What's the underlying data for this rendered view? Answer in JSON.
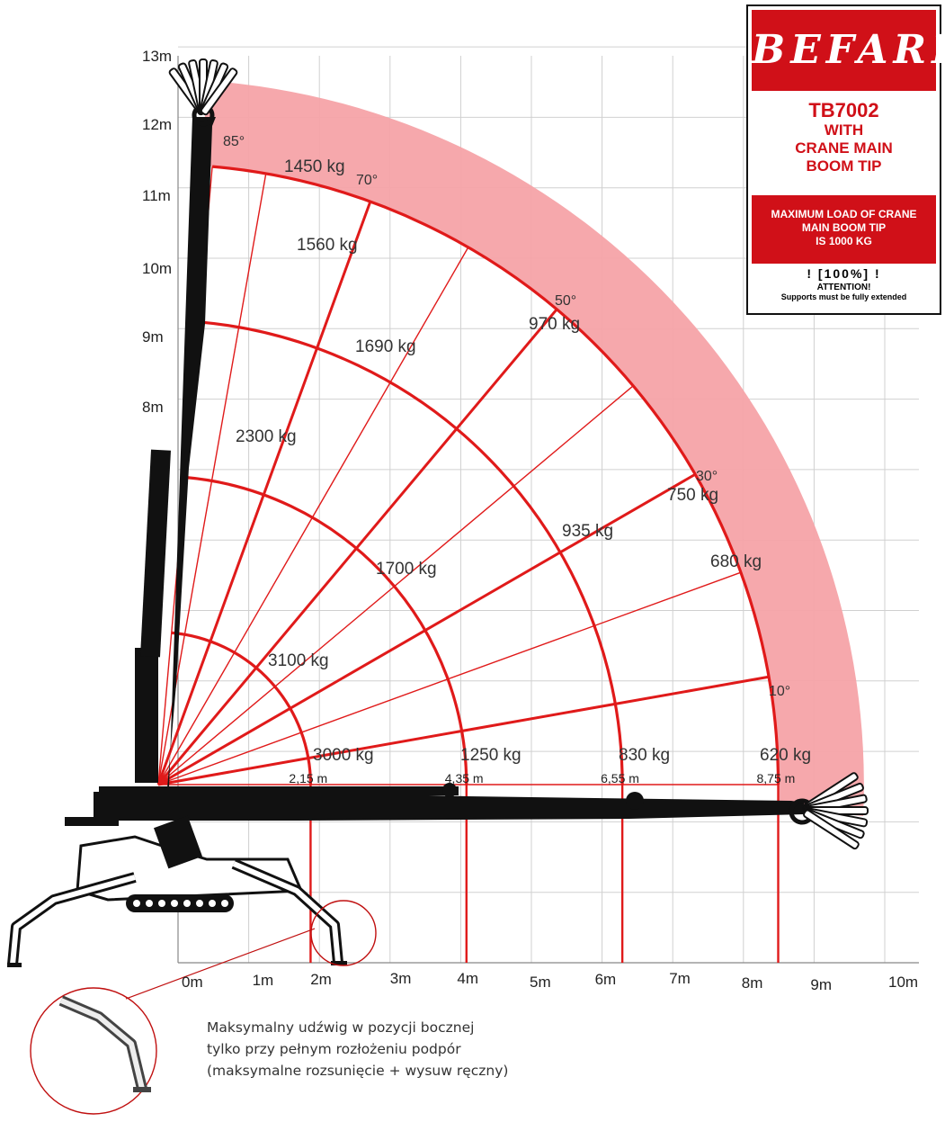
{
  "chart_data": {
    "type": "load-chart",
    "x_ticks": [
      "0m",
      "1m",
      "2m",
      "3m",
      "4m",
      "5m",
      "6m",
      "7m",
      "8m",
      "9m",
      "10m"
    ],
    "y_ticks": [
      "13m",
      "12m",
      "11m",
      "10m",
      "9m",
      "8m"
    ],
    "radii_m": [
      2.15,
      4.35,
      6.55,
      8.75
    ],
    "radius_labels": [
      "2,15 m",
      "4,35 m",
      "6,55 m",
      "8,75 m"
    ],
    "angles_deg": [
      0,
      10,
      20,
      30,
      40,
      50,
      60,
      70,
      80,
      85
    ],
    "boom_angles_labeled": [
      {
        "angle": 85,
        "label": "85°"
      },
      {
        "angle": 70,
        "label": "70°"
      },
      {
        "angle": 50,
        "label": "50°"
      },
      {
        "angle": 30,
        "label": "30°"
      },
      {
        "angle": 10,
        "label": "10°"
      }
    ],
    "loads": [
      {
        "radius_m": 2.15,
        "angle": 0,
        "label": "3000 kg"
      },
      {
        "radius_m": 4.35,
        "angle": 0,
        "label": "1250 kg"
      },
      {
        "radius_m": 6.55,
        "angle": 0,
        "label": "830 kg"
      },
      {
        "radius_m": 8.75,
        "angle": 0,
        "label": "620 kg"
      },
      {
        "radius_m": 2.15,
        "angle": 45,
        "label": "3100 kg"
      },
      {
        "radius_m": 4.35,
        "angle": 45,
        "label": "1700 kg"
      },
      {
        "radius_m": 4.35,
        "angle": 70,
        "label": "2300 kg"
      },
      {
        "radius_m": 6.55,
        "angle": 55,
        "label": "1690 kg"
      },
      {
        "radius_m": 6.55,
        "angle": 30,
        "label": "935 kg"
      },
      {
        "radius_m": 8.75,
        "angle": 73,
        "label": "1560 kg"
      },
      {
        "radius_m": 8.75,
        "angle": 78,
        "label": "1450 kg"
      },
      {
        "radius_m": 8.75,
        "angle": 50,
        "label": "970 kg"
      },
      {
        "radius_m": 8.75,
        "angle": 30,
        "label": "750 kg"
      },
      {
        "radius_m": 8.75,
        "angle": 18,
        "label": "680 kg"
      }
    ],
    "colors": {
      "curve": "#e01a1a",
      "band": "#f6a3a8",
      "grid": "#d0d0d0",
      "machine": "#111111"
    }
  },
  "brand": {
    "logo": "BEFARD",
    "model_line1": "TB7002",
    "model_line2": "WITH",
    "model_line3": "CRANE MAIN",
    "model_line4": "BOOM TIP",
    "max_line1": "MAXIMUM LOAD OF CRANE",
    "max_line2": "MAIN BOOM TIP",
    "max_line3": "IS 1000 KG",
    "warn_icon": "! [100%] !",
    "attention": "ATTENTION!",
    "supports": "Supports must be fully extended"
  },
  "note": {
    "line1": "Maksymalny udźwig w pozycji bocznej",
    "line2": "tylko przy pełnym rozłożeniu podpór",
    "line3": "(maksymalne rozsunięcie + wysuw ręczny)"
  }
}
